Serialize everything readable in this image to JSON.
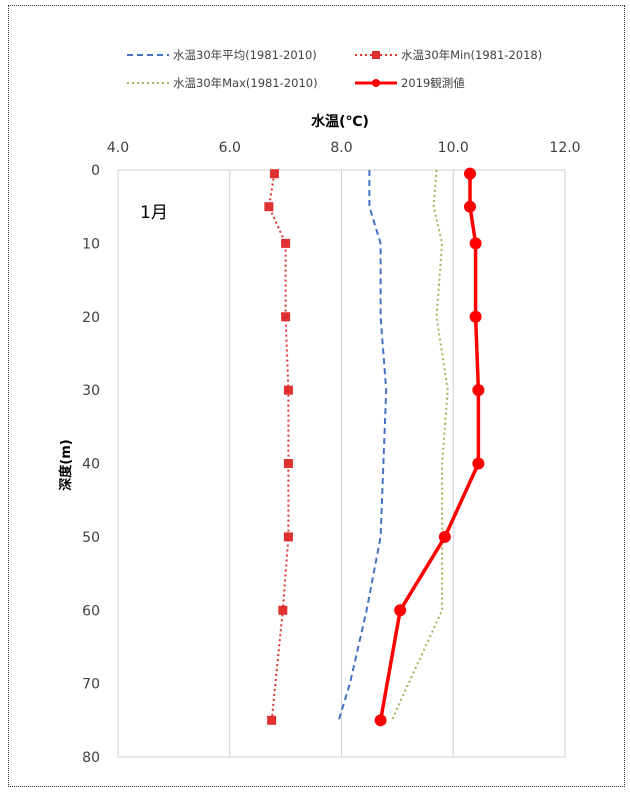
{
  "chart_data": {
    "type": "line",
    "orientation": "depth-profile",
    "title": "水温(℃)",
    "annotation": "1月",
    "xlabel": "水温(℃)",
    "ylabel": "深度(m)",
    "xlim": [
      4.0,
      12.0
    ],
    "ylim": [
      0,
      80
    ],
    "y_inverted": true,
    "x_axis_position": "top",
    "xticks": [
      "4.0",
      "6.0",
      "8.0",
      "10.0",
      "12.0"
    ],
    "yticks": [
      "0",
      "10",
      "20",
      "30",
      "40",
      "50",
      "60",
      "70",
      "80"
    ],
    "grid": "vertical",
    "legend_position": "top",
    "series": [
      {
        "name": "水温30年平均(1981-2010)",
        "color": "#4472c4",
        "style": "dashed",
        "marker": "none",
        "points": [
          [
            8.5,
            0
          ],
          [
            8.5,
            5
          ],
          [
            8.7,
            10
          ],
          [
            8.7,
            20
          ],
          [
            8.8,
            30
          ],
          [
            8.75,
            40
          ],
          [
            8.7,
            50
          ],
          [
            8.45,
            60
          ],
          [
            8.15,
            70
          ],
          [
            7.95,
            75
          ]
        ]
      },
      {
        "name": "水温30年Min(1981-2018)",
        "color": "#e03030",
        "style": "dotted",
        "marker": "square",
        "points": [
          [
            6.8,
            0.5
          ],
          [
            6.7,
            5
          ],
          [
            7.0,
            10
          ],
          [
            7.0,
            20
          ],
          [
            7.05,
            30
          ],
          [
            7.05,
            40
          ],
          [
            7.05,
            50
          ],
          [
            6.95,
            60
          ],
          [
            6.75,
            75
          ]
        ]
      },
      {
        "name": "水温30年Max(1981-2010)",
        "color": "#a6b25a",
        "style": "dotted",
        "marker": "none",
        "points": [
          [
            9.7,
            0
          ],
          [
            9.65,
            5
          ],
          [
            9.8,
            10
          ],
          [
            9.7,
            20
          ],
          [
            9.9,
            30
          ],
          [
            9.8,
            40
          ],
          [
            9.8,
            50
          ],
          [
            9.8,
            60
          ],
          [
            9.2,
            70
          ],
          [
            8.9,
            75
          ]
        ]
      },
      {
        "name": "2019観測値",
        "color": "#ff0000",
        "style": "solid",
        "marker": "circle",
        "points": [
          [
            10.3,
            0.5
          ],
          [
            10.3,
            5
          ],
          [
            10.4,
            10
          ],
          [
            10.4,
            20
          ],
          [
            10.45,
            30
          ],
          [
            10.45,
            40
          ],
          [
            9.85,
            50
          ],
          [
            9.05,
            60
          ],
          [
            8.7,
            75
          ]
        ]
      }
    ]
  }
}
